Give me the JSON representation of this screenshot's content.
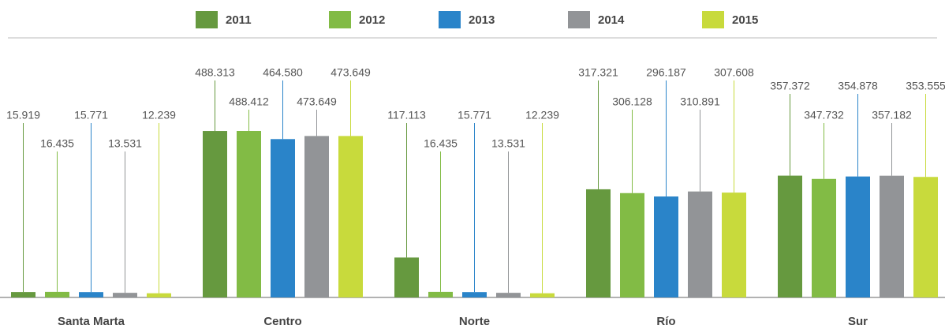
{
  "chart_data": {
    "type": "bar",
    "categories": [
      "Santa Marta",
      "Centro",
      "Norte",
      "Río",
      "Sur"
    ],
    "series": [
      {
        "name": "2011",
        "color": "#66993f",
        "values": [
          15919,
          488313,
          117113,
          317321,
          357372
        ],
        "value_labels": [
          "15.919",
          "488.313",
          "117.113",
          "317.321",
          "357.372"
        ]
      },
      {
        "name": "2012",
        "color": "#82bb45",
        "values": [
          16435,
          488412,
          16435,
          306128,
          347732
        ],
        "value_labels": [
          "16.435",
          "488.412",
          "16.435",
          "306.128",
          "347.732"
        ]
      },
      {
        "name": "2013",
        "color": "#2a84c9",
        "values": [
          15771,
          464580,
          15771,
          296187,
          354878
        ],
        "value_labels": [
          "15.771",
          "464.580",
          "15.771",
          "296.187",
          "354.878"
        ]
      },
      {
        "name": "2014",
        "color": "#929497",
        "values": [
          13531,
          473649,
          13531,
          310891,
          357182
        ],
        "value_labels": [
          "13.531",
          "473.649",
          "13.531",
          "310.891",
          "357.182"
        ]
      },
      {
        "name": "2015",
        "color": "#c8da3c",
        "values": [
          12239,
          473649,
          12239,
          307608,
          353555
        ],
        "value_labels": [
          "12.239",
          "473.649",
          "12.239",
          "307.608",
          "353.555"
        ]
      }
    ]
  }
}
